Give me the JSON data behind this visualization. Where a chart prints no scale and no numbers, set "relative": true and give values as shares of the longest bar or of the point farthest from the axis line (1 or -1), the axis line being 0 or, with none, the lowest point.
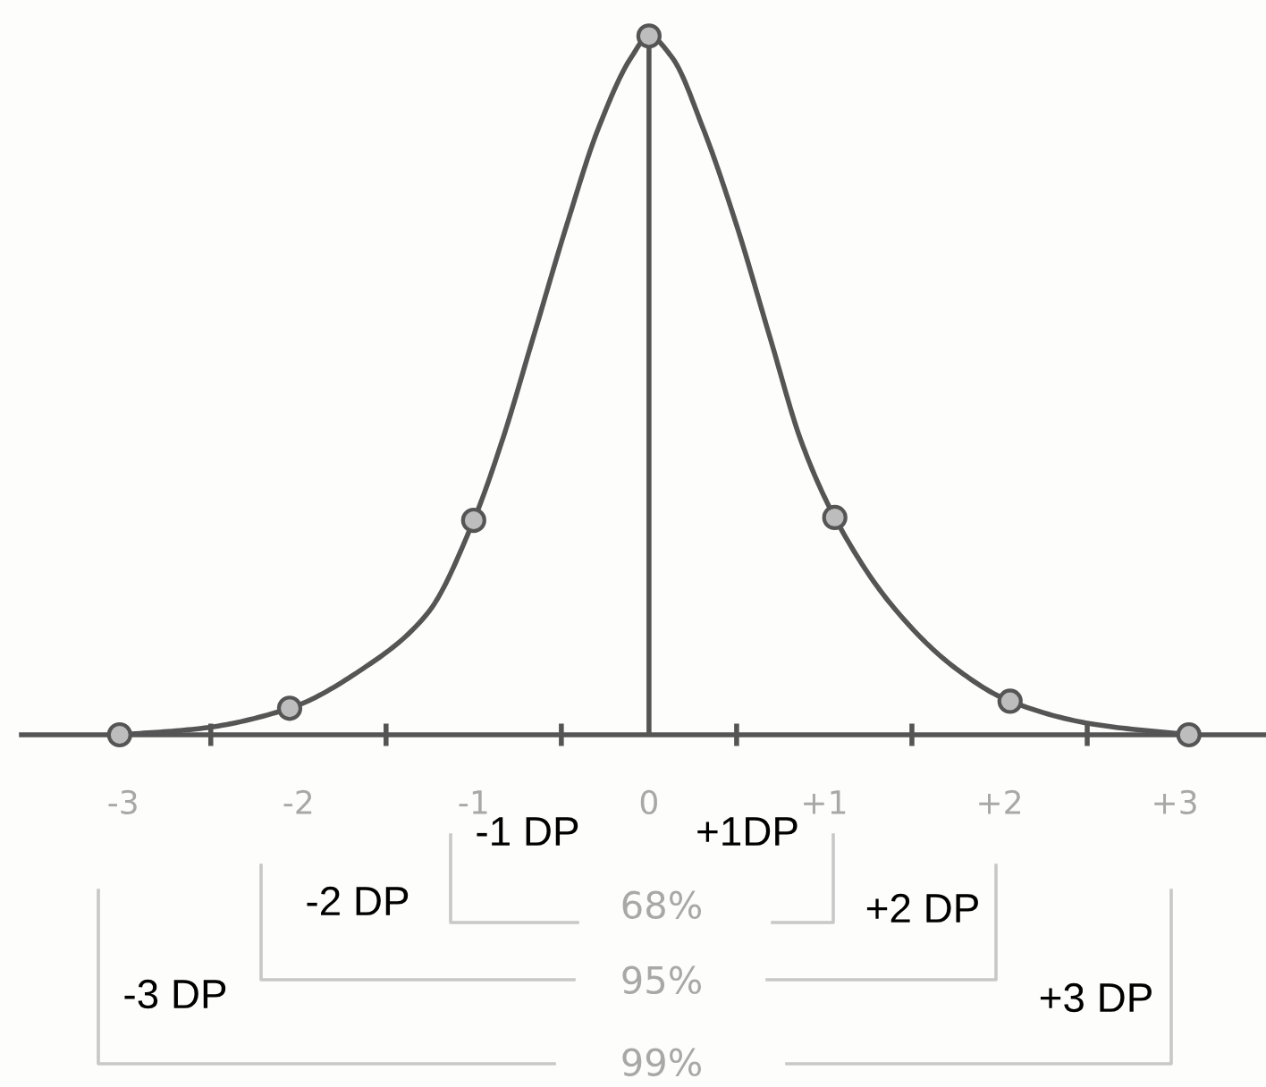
{
  "chart_data": {
    "type": "line",
    "relative": true,
    "xlim": [
      -3.58,
      3.52
    ],
    "xticks": [
      {
        "value": -3,
        "label": "-3"
      },
      {
        "value": -2,
        "label": "-2"
      },
      {
        "value": -1,
        "label": "-1"
      },
      {
        "value": 0,
        "label": "0"
      },
      {
        "value": 1,
        "label": "+1"
      },
      {
        "value": 2,
        "label": "+2"
      },
      {
        "value": 3,
        "label": "+3"
      },
      {
        "value": -2.5,
        "label": null
      },
      {
        "value": -1.5,
        "label": null
      },
      {
        "value": -0.5,
        "label": null
      },
      {
        "value": 0.5,
        "label": null
      },
      {
        "value": 1.5,
        "label": null
      },
      {
        "value": 2.5,
        "label": null
      }
    ],
    "series": [
      {
        "color": "#555555",
        "marker": "none",
        "x": [
          -3.02,
          -2.56,
          -2.05,
          -1.63,
          -1.26,
          -1.0,
          -0.84,
          -0.66,
          -0.47,
          -0.29,
          -0.1,
          0,
          0.13,
          0.31,
          0.5,
          0.69,
          0.87,
          1.06,
          1.38,
          1.75,
          2.06,
          2.54,
          3.08
        ],
        "values": [
          0,
          0.009,
          0.038,
          0.095,
          0.175,
          0.307,
          0.419,
          0.569,
          0.729,
          0.867,
          0.97,
          1,
          0.97,
          0.867,
          0.729,
          0.569,
          0.419,
          0.311,
          0.187,
          0.095,
          0.048,
          0.015,
          0
        ]
      },
      {
        "type": "scatter",
        "color": "#bdbdbd",
        "marker": "circle",
        "x": [
          -3.02,
          -2.05,
          -1.0,
          0,
          1.06,
          2.06,
          3.08
        ],
        "values": [
          0,
          0.038,
          0.307,
          1,
          0.311,
          0.048,
          0
        ]
      }
    ],
    "ref_lines": [
      {
        "axis": "x",
        "value": 0,
        "color": "#555555"
      }
    ],
    "annotations": [
      "-1 DP",
      "+1DP",
      "-2 DP",
      "68%",
      "+2 DP",
      "95%",
      "-3 DP",
      "+3 DP",
      "99%"
    ],
    "grid": false,
    "legend": false
  }
}
